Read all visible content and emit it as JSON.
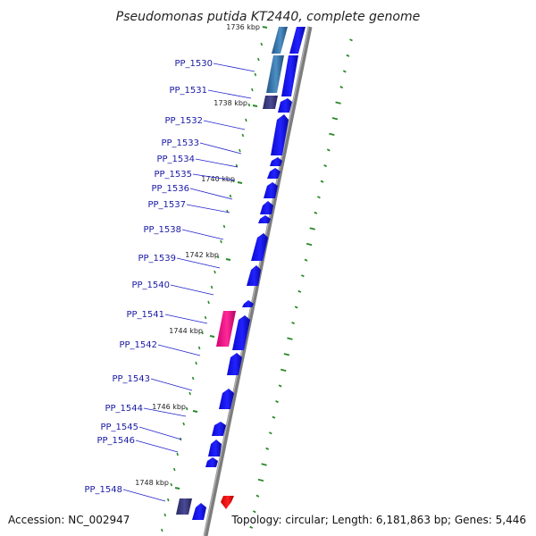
{
  "title": "Pseudomonas putida KT2440, complete genome",
  "footer": {
    "accession": "Accession: NC_002947",
    "summary": "Topology: circular; Length: 6,181,863 bp; Genes: 5,446"
  },
  "genes": [
    {
      "label": "PP_1530"
    },
    {
      "label": "PP_1531"
    },
    {
      "label": "PP_1532"
    },
    {
      "label": "PP_1533"
    },
    {
      "label": "PP_1534"
    },
    {
      "label": "PP_1535"
    },
    {
      "label": "PP_1536"
    },
    {
      "label": "PP_1537"
    },
    {
      "label": "PP_1538"
    },
    {
      "label": "PP_1539"
    },
    {
      "label": "PP_1540"
    },
    {
      "label": "PP_1541"
    },
    {
      "label": "PP_1542"
    },
    {
      "label": "PP_1543"
    },
    {
      "label": "PP_1544"
    },
    {
      "label": "PP_1545"
    },
    {
      "label": "PP_1546"
    },
    {
      "label": "PP_1548"
    }
  ],
  "ruler": [
    {
      "label": "1736 kbp"
    },
    {
      "label": "1738 kbp"
    },
    {
      "label": "1740 kbp"
    },
    {
      "label": "1742 kbp"
    },
    {
      "label": "1744 kbp"
    },
    {
      "label": "1746 kbp"
    },
    {
      "label": "1748 kbp"
    }
  ],
  "colors": {
    "cds": "#1010ee",
    "rna": "#ee1188",
    "other": "#3a3a7a",
    "pseudo": "#2e6ea6",
    "backbone": "#8a8a8a",
    "tick": "#2a8a2a",
    "label_line": "#2222cc"
  }
}
